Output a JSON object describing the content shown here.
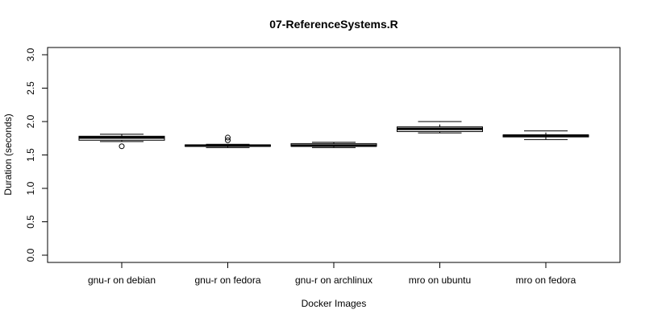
{
  "chart_data": {
    "type": "boxplot",
    "title": "07-ReferenceSystems.R",
    "xlabel": "Docker Images",
    "ylabel": "Duration (seconds)",
    "ylim": [
      0.0,
      3.0
    ],
    "yticks": [
      "0.0",
      "0.5",
      "1.0",
      "1.5",
      "2.0",
      "2.5",
      "3.0"
    ],
    "categories": [
      "gnu-r on debian",
      "gnu-r on fedora",
      "gnu-r on archlinux",
      "mro on ubuntu",
      "mro on fedora"
    ],
    "boxes": [
      {
        "whisker_low": 1.7,
        "q1": 1.72,
        "median": 1.76,
        "q3": 1.78,
        "whisker_high": 1.81,
        "outliers": [
          1.63
        ]
      },
      {
        "whisker_low": 1.61,
        "q1": 1.63,
        "median": 1.64,
        "q3": 1.65,
        "whisker_high": 1.66,
        "outliers": [
          1.72,
          1.76
        ]
      },
      {
        "whisker_low": 1.61,
        "q1": 1.63,
        "median": 1.64,
        "q3": 1.67,
        "whisker_high": 1.69,
        "outliers": []
      },
      {
        "whisker_low": 1.83,
        "q1": 1.85,
        "median": 1.89,
        "q3": 1.92,
        "whisker_high": 2.0,
        "outliers": []
      },
      {
        "whisker_low": 1.73,
        "q1": 1.77,
        "median": 1.79,
        "q3": 1.8,
        "whisker_high": 1.86,
        "outliers": []
      }
    ],
    "grid": false,
    "legend": "none"
  }
}
